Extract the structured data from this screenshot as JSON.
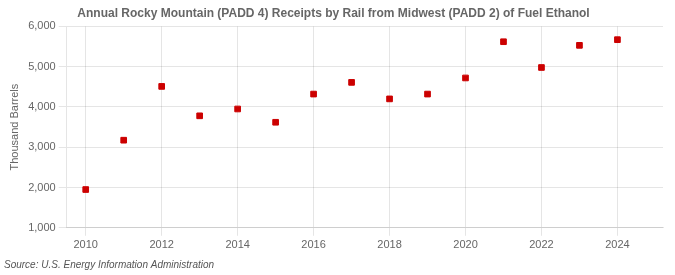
{
  "chart_data": {
    "type": "scatter",
    "title": "Annual Rocky Mountain (PADD 4) Receipts by Rail from Midwest (PADD 2) of Fuel Ethanol",
    "ylabel": "Thousand Barrels",
    "annotation": "Source: U.S. Energy Information Administration",
    "x": [
      2010,
      2011,
      2012,
      2013,
      2014,
      2015,
      2016,
      2017,
      2018,
      2019,
      2020,
      2021,
      2022,
      2023,
      2024
    ],
    "values": [
      1950,
      3175,
      4510,
      3780,
      3950,
      3620,
      4320,
      4610,
      4200,
      4320,
      4720,
      5620,
      4980,
      5530,
      5670
    ],
    "color": "#cc0000",
    "marker": "square",
    "xlim": [
      2009.5,
      2025.2
    ],
    "ylim": [
      1000,
      6000
    ],
    "xticks": [
      2010,
      2012,
      2014,
      2016,
      2018,
      2020,
      2022,
      2024
    ],
    "yticks": [
      {
        "value": 1000,
        "label": "1,000"
      },
      {
        "value": 2000,
        "label": "2,000"
      },
      {
        "value": 3000,
        "label": "3,000"
      },
      {
        "value": 4000,
        "label": "4,000"
      },
      {
        "value": 5000,
        "label": "5,000"
      },
      {
        "value": 6000,
        "label": "6,000"
      }
    ],
    "grid": true
  }
}
